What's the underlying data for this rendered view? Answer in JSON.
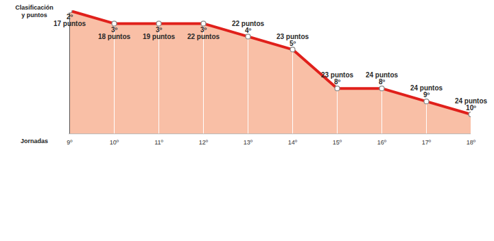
{
  "chart_data": {
    "type": "line",
    "x_label": "Jornadas",
    "y_label": "Clasificación y puntos",
    "categories": [
      "9º",
      "10º",
      "11º",
      "12º",
      "13º",
      "14º",
      "15º",
      "16º",
      "17º",
      "18º"
    ],
    "values": [
      2,
      3,
      3,
      3,
      4,
      5,
      8,
      8,
      9,
      10
    ],
    "value_labels": [
      "2º",
      "3º",
      "3º",
      "3º",
      "4º",
      "5º",
      "8º",
      "8º",
      "9º",
      "10º"
    ],
    "points": [
      17,
      18,
      19,
      22,
      22,
      23,
      23,
      24,
      24,
      24
    ],
    "points_labels": [
      "17 puntos",
      "18 puntos",
      "19 puntos",
      "22 puntos",
      "22 puntos",
      "23 puntos",
      "23 puntos",
      "24 puntos",
      "24 puntos",
      "24 puntos"
    ],
    "color": "#e0201b",
    "ylim": [
      11.5,
      2
    ],
    "yticks": [],
    "grid": false,
    "tick_labels": "x",
    "data_labels": true
  }
}
